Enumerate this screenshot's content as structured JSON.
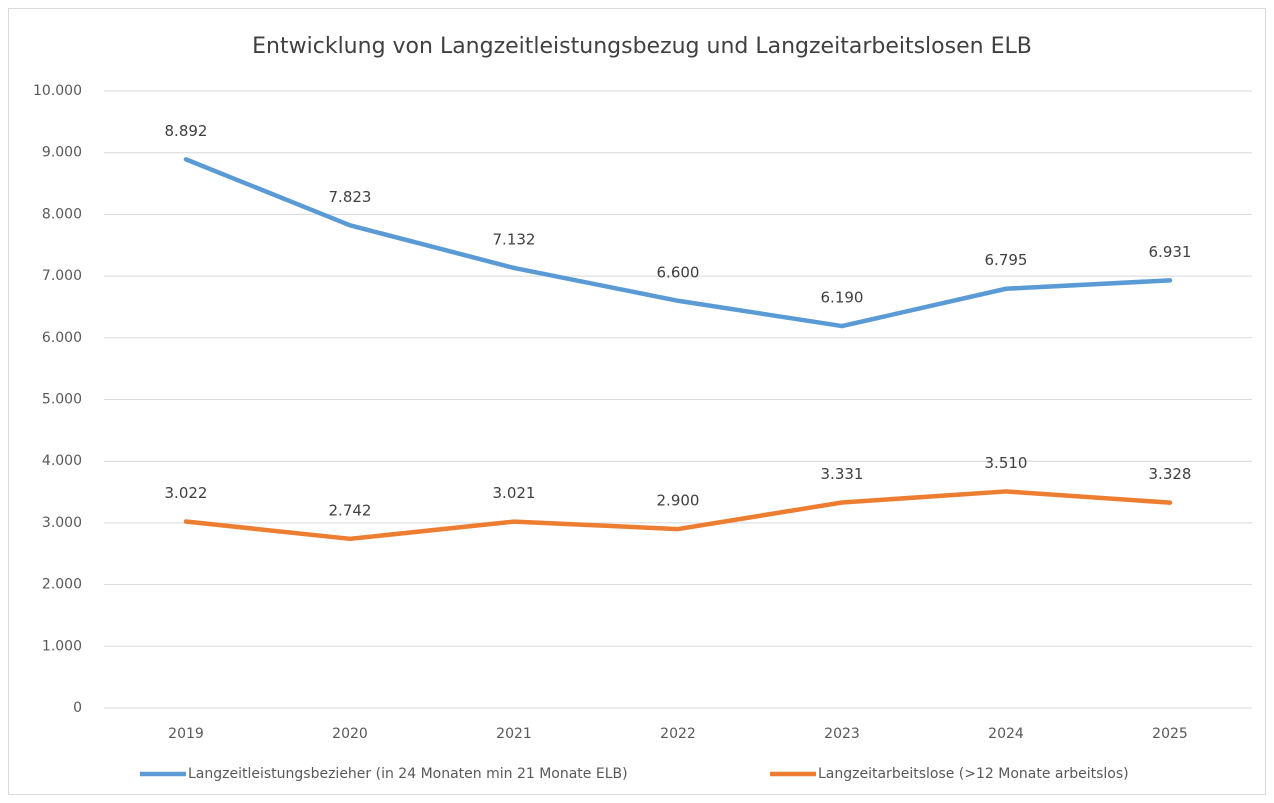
{
  "chart_data": {
    "type": "line",
    "title": "Entwicklung von Langzeitleistungsbezug und Langzeitarbeitslosen ELB",
    "categories": [
      "2019",
      "2020",
      "2021",
      "2022",
      "2023",
      "2024",
      "2025"
    ],
    "series": [
      {
        "name": "Langzeitleistungsbezieher (in 24 Monaten min 21 Monate ELB)",
        "color": "#5b9bd5",
        "values": [
          8892,
          7823,
          7132,
          6600,
          6190,
          6795,
          6931
        ],
        "value_labels": [
          "8.892",
          "7.823",
          "7.132",
          "6.600",
          "6.190",
          "6.795",
          "6.931"
        ]
      },
      {
        "name": "Langzeitarbeitslose (>12 Monate arbeitslos)",
        "color": "#ed7d31",
        "values": [
          3022,
          2742,
          3021,
          2900,
          3331,
          3510,
          3328
        ],
        "value_labels": [
          "3.022",
          "2.742",
          "3.021",
          "2.900",
          "3.331",
          "3.510",
          "3.328"
        ]
      }
    ],
    "ylim": [
      0,
      10000
    ],
    "yticks": [
      0,
      {
        "value": 1000,
        "label": "1.000"
      },
      {
        "value": 2000,
        "label": "2.000"
      },
      {
        "value": 3000,
        "label": "3.000"
      },
      {
        "value": 4000,
        "label": "4.000"
      },
      {
        "value": 5000,
        "label": "5.000"
      },
      {
        "value": 6000,
        "label": "6.000"
      },
      {
        "value": 7000,
        "label": "7.000"
      },
      {
        "value": 8000,
        "label": "8.000"
      },
      {
        "value": 9000,
        "label": "9.000"
      },
      {
        "value": 10000,
        "label": "10.000"
      }
    ],
    "grid": true,
    "legend": "bottom"
  }
}
